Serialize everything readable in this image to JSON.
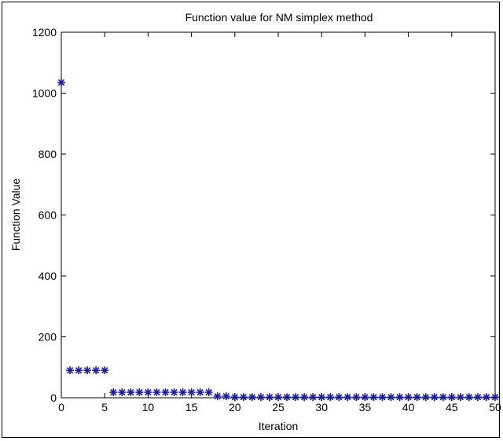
{
  "chart_data": {
    "type": "scatter",
    "title": "Function value for NM simplex method",
    "xlabel": "Iteration",
    "ylabel": "Function Value",
    "xlim": [
      0,
      50
    ],
    "ylim": [
      0,
      1200
    ],
    "xticks": [
      0,
      5,
      10,
      15,
      20,
      25,
      30,
      35,
      40,
      45,
      50
    ],
    "yticks": [
      0,
      200,
      400,
      600,
      800,
      1000,
      1200
    ],
    "grid": false,
    "marker": "*",
    "marker_color": "#1a1aa8",
    "x": [
      0,
      1,
      2,
      3,
      4,
      5,
      6,
      7,
      8,
      9,
      10,
      11,
      12,
      13,
      14,
      15,
      16,
      17,
      18,
      19,
      20,
      21,
      22,
      23,
      24,
      25,
      26,
      27,
      28,
      29,
      30,
      31,
      32,
      33,
      34,
      35,
      36,
      37,
      38,
      39,
      40,
      41,
      42,
      43,
      44,
      45,
      46,
      47,
      48,
      49,
      50
    ],
    "y": [
      1035,
      90,
      90,
      90,
      90,
      90,
      18,
      18,
      18,
      18,
      18,
      18,
      18,
      18,
      18,
      18,
      18,
      18,
      5,
      5,
      2,
      2,
      2,
      2,
      2,
      2,
      2,
      2,
      2,
      2,
      2,
      2,
      2,
      2,
      2,
      2,
      2,
      2,
      2,
      2,
      2,
      2,
      2,
      2,
      2,
      2,
      2,
      2,
      2,
      2,
      2
    ]
  }
}
